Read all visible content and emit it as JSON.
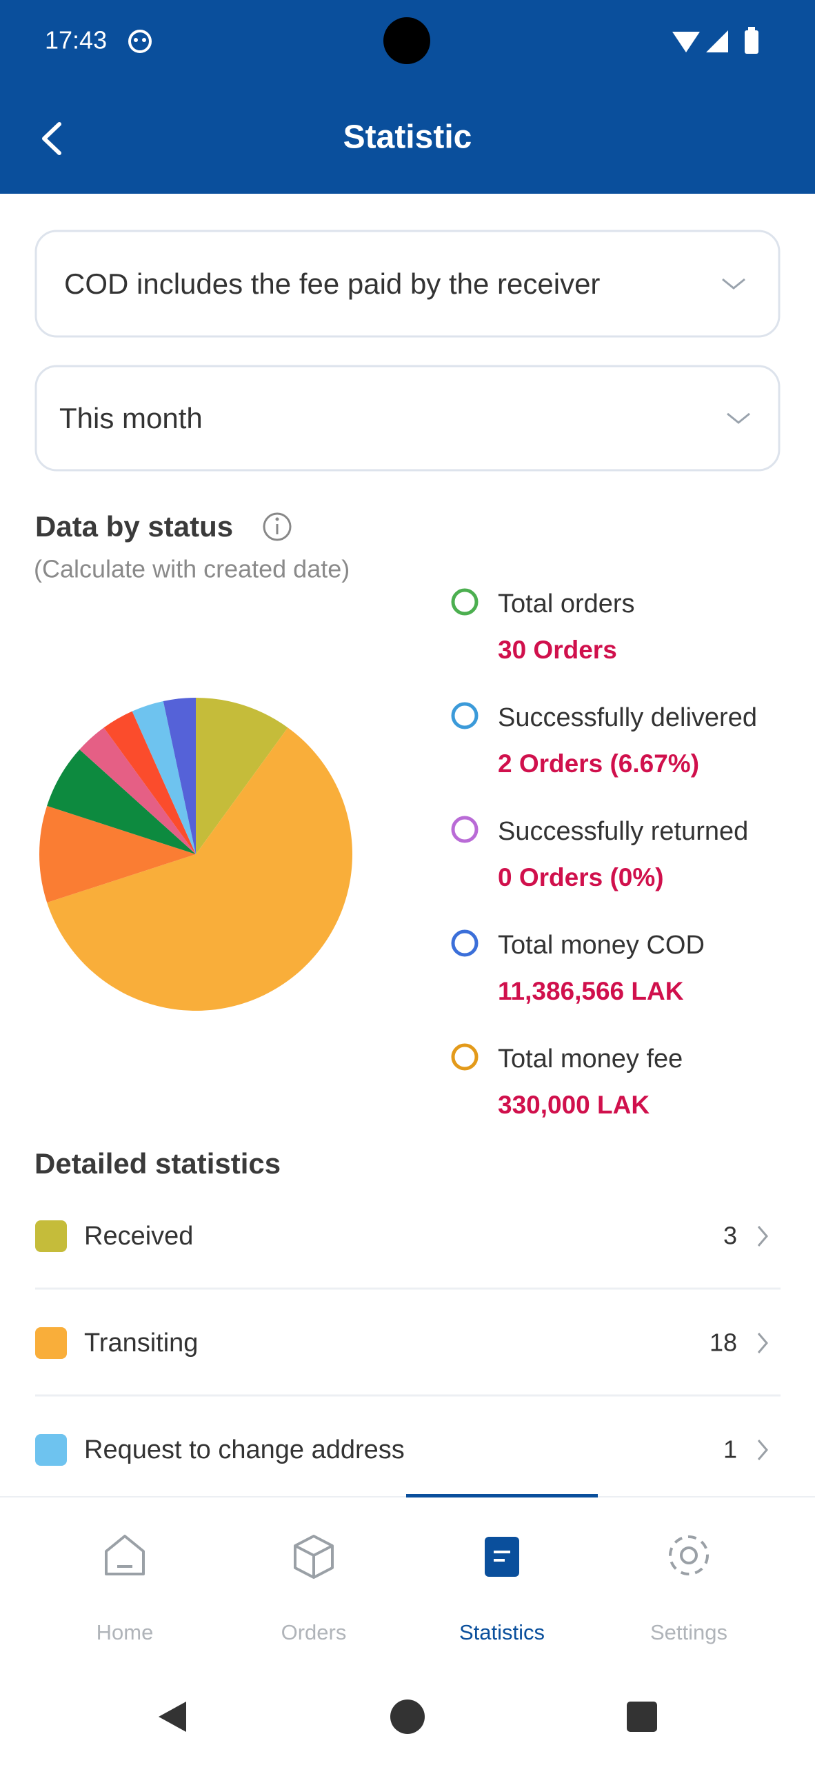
{
  "status_bar": {
    "time": "17:43"
  },
  "header": {
    "title": "Statistic"
  },
  "filters": {
    "fee_option": "COD includes the fee paid by the receiver",
    "period": "This month"
  },
  "status_section": {
    "title": "Data by status",
    "subtitle": "(Calculate with created date)",
    "legend": [
      {
        "label": "Total orders",
        "value": "30 Orders",
        "color": "#4caf50"
      },
      {
        "label": "Successfully delivered",
        "value": "2 Orders (6.67%)",
        "color": "#3b9ad9"
      },
      {
        "label": "Successfully returned",
        "value": "0 Orders (0%)",
        "color": "#b96bd6"
      },
      {
        "label": "Total money COD",
        "value": "11,386,566 LAK",
        "color": "#3b6fd9"
      },
      {
        "label": "Total money fee",
        "value": "330,000 LAK",
        "color": "#e39a1a"
      }
    ]
  },
  "chart_data": {
    "type": "pie",
    "values": [
      3,
      18,
      3,
      2,
      1,
      1,
      1,
      1
    ],
    "colors": [
      "#c5bc3a",
      "#f9ae3a",
      "#fa7d33",
      "#0d8a3f",
      "#e55f85",
      "#fb4c2c",
      "#6ec3ef",
      "#5562d8"
    ]
  },
  "detailed_statistics": {
    "title": "Detailed statistics",
    "items": [
      {
        "label": "Received",
        "count": 3,
        "color": "#c5bc3a"
      },
      {
        "label": "Transiting",
        "count": 18,
        "color": "#f9ae3a"
      },
      {
        "label": "Request to change address",
        "count": 1,
        "color": "#6ec3ef"
      }
    ]
  },
  "bottom_nav": {
    "items": [
      "Home",
      "Orders",
      "Statistics",
      "Settings"
    ],
    "active": 2
  }
}
